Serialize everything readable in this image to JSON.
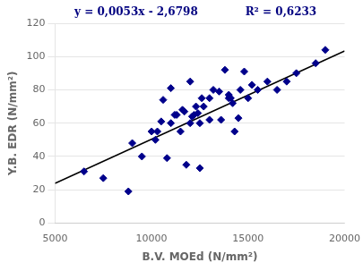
{
  "chart_data": {
    "type": "scatter",
    "xlabel": "B.V. MOEd (N/mm²)",
    "ylabel": "Y.B. EDR (N/mm²)",
    "annotations": [
      {
        "text": "y = 0,0053x - 2,6798",
        "color": "#000080"
      },
      {
        "text": "R² = 0,6233",
        "color": "#000080"
      }
    ],
    "series": [
      {
        "type": "scatter",
        "color": "#00008B",
        "marker": "diamond",
        "x": [
          6500,
          7500,
          8800,
          9000,
          9500,
          10000,
          10200,
          10300,
          10500,
          10600,
          10800,
          11000,
          11000,
          11200,
          11300,
          11500,
          11600,
          11700,
          11800,
          12000,
          12000,
          12100,
          12200,
          12300,
          12400,
          12500,
          12500,
          12600,
          12700,
          13000,
          13000,
          13200,
          13500,
          13600,
          13800,
          14000,
          14000,
          14100,
          14200,
          14300,
          14500,
          14600,
          14800,
          15000,
          15200,
          15500,
          16000,
          16500,
          17000,
          17500,
          18500,
          19000
        ],
        "values": [
          31,
          27,
          19,
          48,
          40,
          55,
          50,
          55,
          61,
          74,
          39,
          60,
          81,
          65,
          65,
          55,
          68,
          67,
          35,
          60,
          85,
          64,
          65,
          70,
          66,
          60,
          33,
          75,
          70,
          62,
          75,
          80,
          79,
          62,
          92,
          75,
          77,
          75,
          72,
          55,
          63,
          80,
          91,
          75,
          83,
          80,
          85,
          80,
          85,
          90,
          96,
          104
        ]
      },
      {
        "type": "line",
        "color": "#000000",
        "line_style": "solid",
        "x": [
          5000,
          20000
        ],
        "values": [
          23.8202,
          103.3202
        ]
      }
    ],
    "xlim": [
      5000,
      20000
    ],
    "ylim": [
      0,
      120
    ],
    "xticks": [
      5000,
      10000,
      15000,
      20000
    ],
    "yticks": [
      0,
      20,
      40,
      60,
      80,
      100,
      120
    ],
    "grid": "y"
  }
}
